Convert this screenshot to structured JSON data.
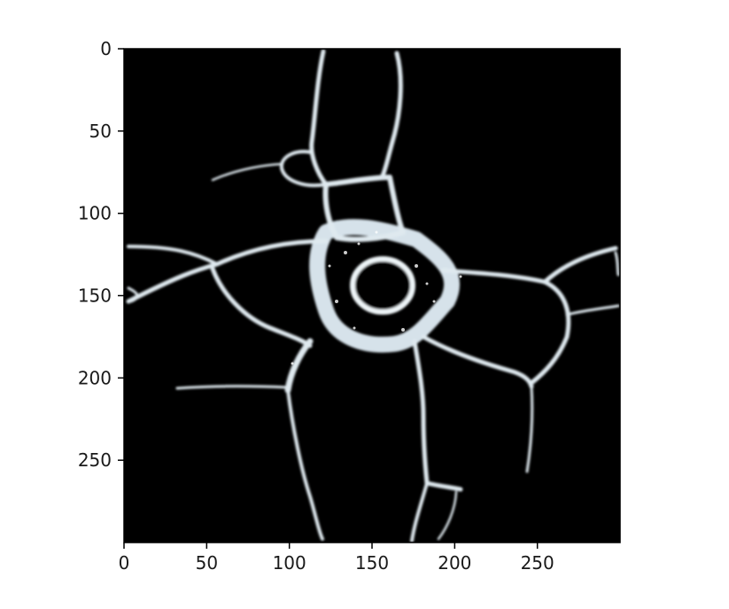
{
  "figure": {
    "x_ticks": [
      "0",
      "50",
      "100",
      "150",
      "200",
      "250"
    ],
    "y_ticks": [
      "0",
      "50",
      "100",
      "150",
      "200",
      "250"
    ],
    "x_tick_values": [
      0,
      50,
      100,
      150,
      200,
      250
    ],
    "y_tick_values": [
      0,
      50,
      100,
      150,
      200,
      250
    ],
    "x_range": [
      0,
      300
    ],
    "y_range": [
      0,
      300
    ],
    "colormap": "bone",
    "background_color": "#000000",
    "foreground_color": "#e6f0f4",
    "axis_color": "#000000"
  }
}
